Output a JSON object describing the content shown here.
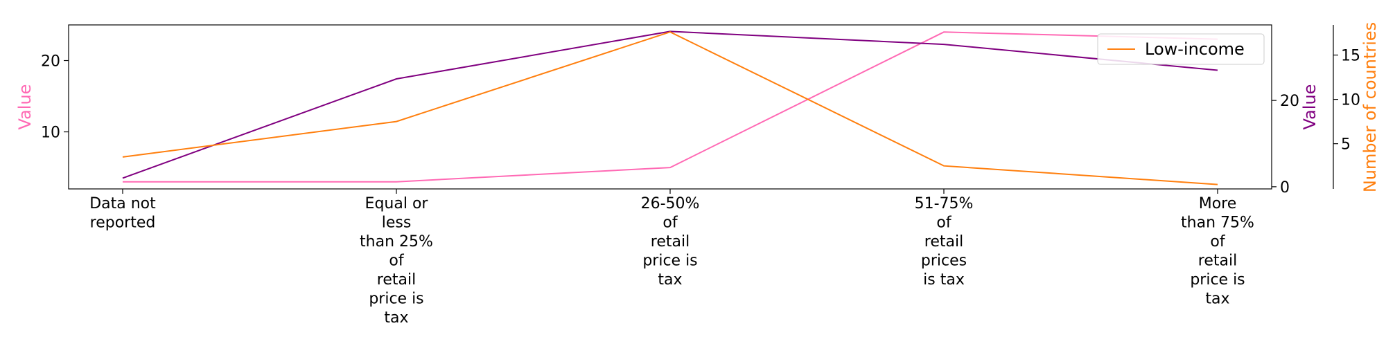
{
  "chart_data": {
    "type": "line",
    "categories": [
      [
        "Data not",
        "reported"
      ],
      [
        "Equal or",
        "less",
        "than 25%",
        "of",
        "retail",
        "price is",
        "tax"
      ],
      [
        "26-50%",
        "of",
        "retail",
        "price is",
        "tax"
      ],
      [
        "51-75%",
        "of",
        "retail",
        "prices",
        "is tax"
      ],
      [
        "More",
        "than 75%",
        "of",
        "retail",
        "price is",
        "tax"
      ]
    ],
    "axes": {
      "left": {
        "label": "Value",
        "color": "#ff69b4",
        "ylim": [
          2,
          25
        ],
        "ticks": [
          10,
          20
        ]
      },
      "right1": {
        "label": "Value",
        "color": "#800080",
        "ylim": [
          -0.5,
          37.5
        ],
        "ticks": [
          0,
          20
        ]
      },
      "right2": {
        "label": "Number of countries",
        "color": "#ff7f0e",
        "ylim": [
          -0.1,
          18.4
        ],
        "ticks": [
          5,
          10,
          15
        ]
      }
    },
    "series": [
      {
        "axis": "left",
        "color": "#ff69b4",
        "values": [
          3,
          3,
          5,
          24,
          23
        ]
      },
      {
        "axis": "right1",
        "color": "#800080",
        "values": [
          2,
          25,
          36,
          33,
          27
        ]
      },
      {
        "name": "Low-income",
        "axis": "right2",
        "color": "#ff7f0e",
        "values": [
          3.5,
          7.5,
          17.6,
          2.5,
          0.4
        ]
      }
    ],
    "legend": {
      "position": "top-right",
      "entries": [
        "Low-income"
      ]
    },
    "grid": false
  }
}
